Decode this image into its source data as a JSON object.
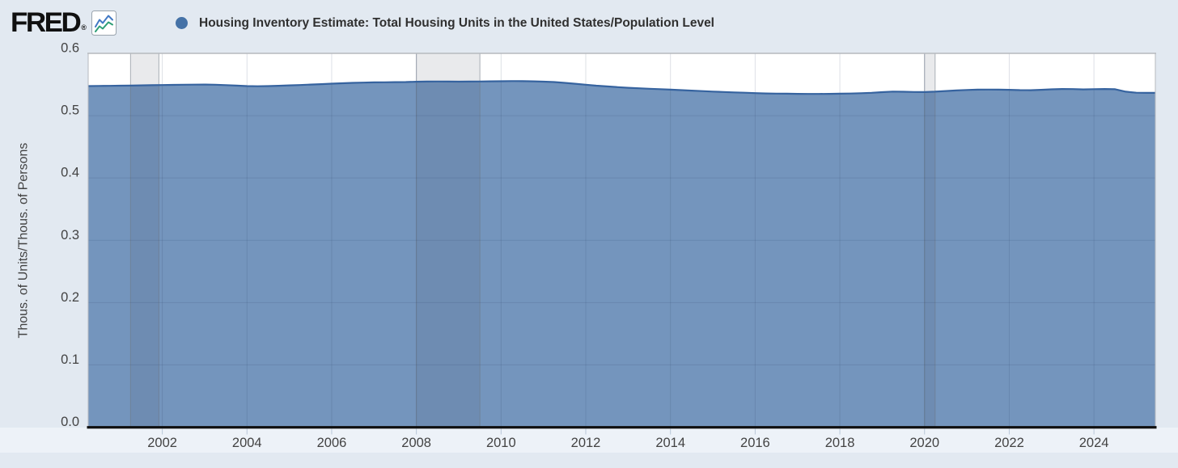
{
  "header": {
    "brand": "FRED",
    "registered_mark": "®",
    "logo_icon": "fred-line-chart-icon",
    "legend_marker_color": "#4572a7",
    "series_title": "Housing Inventory Estimate: Total Housing Units in the United States/Population Level"
  },
  "colors": {
    "page_background": "#e2e9f1",
    "xaxis_strip_background": "#edf2f8",
    "plot_background": "#ffffff",
    "area_fill": "#7495bd",
    "line": "#36639f",
    "gridline": "rgba(44,62,100,0.16)",
    "recession_fill": "rgba(70,80,98,0.12)",
    "recession_edge": "rgba(110,118,132,0.55)",
    "frame": "#b6b9be",
    "axis_line": "#101010",
    "tick_mark": "#b9c7d8",
    "tick_label": "#434343"
  },
  "chart_data": {
    "type": "area",
    "title": "Housing Inventory Estimate: Total Housing Units in the United States/Population Level",
    "xlabel": "",
    "ylabel": "Thous. of Units/Thous. of Persons",
    "xlim": [
      2000.25,
      2025.45
    ],
    "ylim": [
      0,
      0.6
    ],
    "grid": true,
    "legend_position": "top-left",
    "y_ticks": [
      {
        "value": 0.0,
        "label": "0.0"
      },
      {
        "value": 0.1,
        "label": "0.1"
      },
      {
        "value": 0.2,
        "label": "0.2"
      },
      {
        "value": 0.3,
        "label": "0.3"
      },
      {
        "value": 0.4,
        "label": "0.4"
      },
      {
        "value": 0.5,
        "label": "0.5"
      },
      {
        "value": 0.6,
        "label": "0.6"
      }
    ],
    "x_ticks": [
      {
        "value": 2002,
        "label": "2002"
      },
      {
        "value": 2004,
        "label": "2004"
      },
      {
        "value": 2006,
        "label": "2006"
      },
      {
        "value": 2008,
        "label": "2008"
      },
      {
        "value": 2010,
        "label": "2010"
      },
      {
        "value": 2012,
        "label": "2012"
      },
      {
        "value": 2014,
        "label": "2014"
      },
      {
        "value": 2016,
        "label": "2016"
      },
      {
        "value": 2018,
        "label": "2018"
      },
      {
        "value": 2020,
        "label": "2020"
      },
      {
        "value": 2022,
        "label": "2022"
      },
      {
        "value": 2024,
        "label": "2024"
      }
    ],
    "recessions": [
      {
        "start": 2001.25,
        "end": 2001.92
      },
      {
        "start": 2008.0,
        "end": 2009.5
      },
      {
        "start": 2020.0,
        "end": 2020.25
      }
    ],
    "series": [
      {
        "name": "Housing Inventory Estimate: Total Housing Units in the United States/Population Level",
        "color": "#4572a7",
        "frequency": "quarterly",
        "x": [
          2000.25,
          2000.5,
          2000.75,
          2001.0,
          2001.25,
          2001.5,
          2001.75,
          2002.0,
          2002.25,
          2002.5,
          2002.75,
          2003.0,
          2003.25,
          2003.5,
          2003.75,
          2004.0,
          2004.25,
          2004.5,
          2004.75,
          2005.0,
          2005.25,
          2005.5,
          2005.75,
          2006.0,
          2006.25,
          2006.5,
          2006.75,
          2007.0,
          2007.25,
          2007.5,
          2007.75,
          2008.0,
          2008.25,
          2008.5,
          2008.75,
          2009.0,
          2009.25,
          2009.5,
          2009.75,
          2010.0,
          2010.25,
          2010.5,
          2010.75,
          2011.0,
          2011.25,
          2011.5,
          2011.75,
          2012.0,
          2012.25,
          2012.5,
          2012.75,
          2013.0,
          2013.25,
          2013.5,
          2013.75,
          2014.0,
          2014.25,
          2014.5,
          2014.75,
          2015.0,
          2015.25,
          2015.5,
          2015.75,
          2016.0,
          2016.25,
          2016.5,
          2016.75,
          2017.0,
          2017.25,
          2017.5,
          2017.75,
          2018.0,
          2018.25,
          2018.5,
          2018.75,
          2019.0,
          2019.25,
          2019.5,
          2019.75,
          2020.0,
          2020.25,
          2020.5,
          2020.75,
          2021.0,
          2021.25,
          2021.5,
          2021.75,
          2022.0,
          2022.25,
          2022.5,
          2022.75,
          2023.0,
          2023.25,
          2023.5,
          2023.75,
          2024.0,
          2024.25,
          2024.5,
          2024.75,
          2025.0,
          2025.25,
          2025.45
        ],
        "values": [
          0.5475,
          0.5477,
          0.5479,
          0.5481,
          0.5483,
          0.5486,
          0.5489,
          0.5492,
          0.5494,
          0.5496,
          0.5498,
          0.5499,
          0.5496,
          0.549,
          0.5482,
          0.5475,
          0.5472,
          0.5475,
          0.548,
          0.5486,
          0.5492,
          0.5499,
          0.5506,
          0.5513,
          0.552,
          0.5526,
          0.553,
          0.5534,
          0.5536,
          0.5538,
          0.554,
          0.5544,
          0.5547,
          0.5548,
          0.5547,
          0.5546,
          0.5547,
          0.5549,
          0.5551,
          0.5553,
          0.5555,
          0.5554,
          0.5551,
          0.5546,
          0.5539,
          0.5527,
          0.5512,
          0.5496,
          0.5481,
          0.5469,
          0.5458,
          0.5448,
          0.544,
          0.5432,
          0.5425,
          0.5418,
          0.541,
          0.5402,
          0.5394,
          0.5387,
          0.538,
          0.5374,
          0.5368,
          0.5362,
          0.5357,
          0.5354,
          0.5352,
          0.535,
          0.5349,
          0.5349,
          0.535,
          0.5352,
          0.5355,
          0.536,
          0.5367,
          0.5377,
          0.5386,
          0.5384,
          0.538,
          0.5378,
          0.5385,
          0.5395,
          0.5405,
          0.5412,
          0.5417,
          0.5419,
          0.5418,
          0.5415,
          0.541,
          0.5408,
          0.5415,
          0.5423,
          0.5428,
          0.5426,
          0.5422,
          0.5425,
          0.5428,
          0.5424,
          0.5385,
          0.5368,
          0.5366,
          0.5366
        ]
      }
    ]
  }
}
